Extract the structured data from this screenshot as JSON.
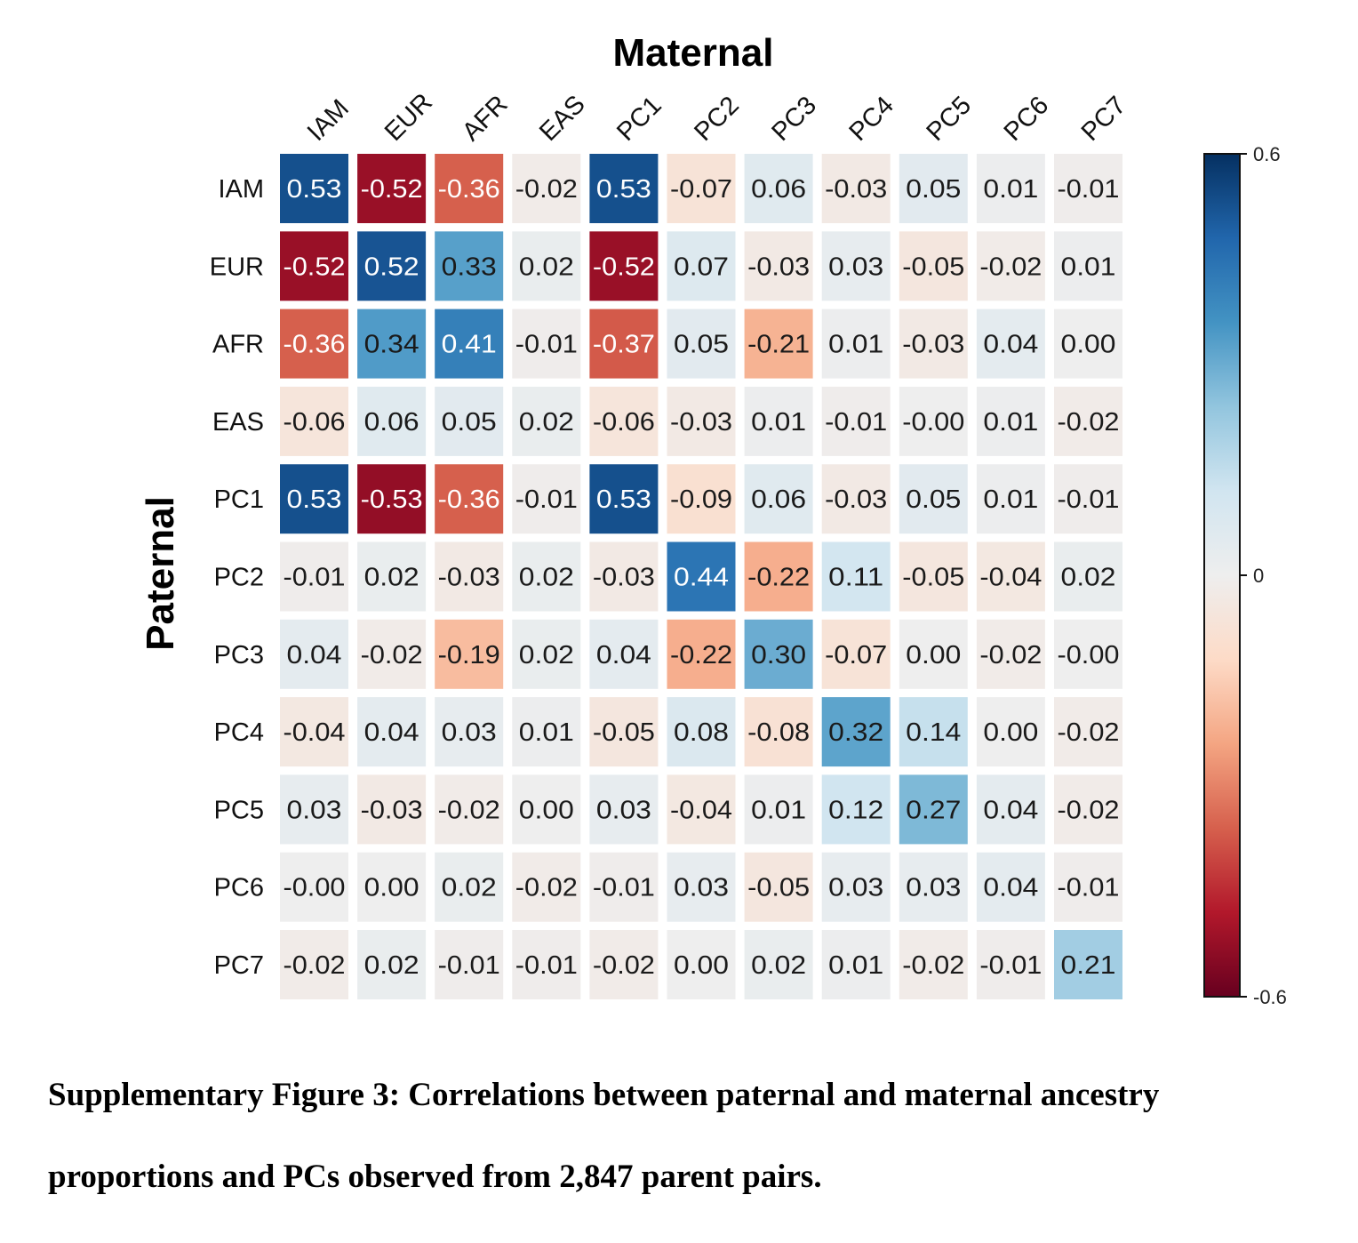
{
  "chart_data": {
    "type": "heatmap",
    "title": "Maternal",
    "xlabel": "Maternal",
    "ylabel": "Paternal",
    "x_categories": [
      "IAM",
      "EUR",
      "AFR",
      "EAS",
      "PC1",
      "PC2",
      "PC3",
      "PC4",
      "PC5",
      "PC6",
      "PC7"
    ],
    "y_categories": [
      "IAM",
      "EUR",
      "AFR",
      "EAS",
      "PC1",
      "PC2",
      "PC3",
      "PC4",
      "PC5",
      "PC6",
      "PC7"
    ],
    "values": [
      [
        0.53,
        -0.52,
        -0.36,
        -0.02,
        0.53,
        -0.07,
        0.06,
        -0.03,
        0.05,
        0.01,
        -0.01
      ],
      [
        -0.52,
        0.52,
        0.33,
        0.02,
        -0.52,
        0.07,
        -0.03,
        0.03,
        -0.05,
        -0.02,
        0.01
      ],
      [
        -0.36,
        0.34,
        0.41,
        -0.01,
        -0.37,
        0.05,
        -0.21,
        0.01,
        -0.03,
        0.04,
        0.0
      ],
      [
        -0.06,
        0.06,
        0.05,
        0.02,
        -0.06,
        -0.03,
        0.01,
        -0.01,
        -0.0,
        0.01,
        -0.02
      ],
      [
        0.53,
        -0.53,
        -0.36,
        -0.01,
        0.53,
        -0.09,
        0.06,
        -0.03,
        0.05,
        0.01,
        -0.01
      ],
      [
        -0.01,
        0.02,
        -0.03,
        0.02,
        -0.03,
        0.44,
        -0.22,
        0.11,
        -0.05,
        -0.04,
        0.02
      ],
      [
        0.04,
        -0.02,
        -0.19,
        0.02,
        0.04,
        -0.22,
        0.3,
        -0.07,
        0.0,
        -0.02,
        -0.0
      ],
      [
        -0.04,
        0.04,
        0.03,
        0.01,
        -0.05,
        0.08,
        -0.08,
        0.32,
        0.14,
        0.0,
        -0.02
      ],
      [
        0.03,
        -0.03,
        -0.02,
        0.0,
        0.03,
        -0.04,
        0.01,
        0.12,
        0.27,
        0.04,
        -0.02
      ],
      [
        -0.0,
        0.0,
        0.02,
        -0.02,
        -0.01,
        0.03,
        -0.05,
        0.03,
        0.03,
        0.04,
        -0.01
      ],
      [
        -0.02,
        0.02,
        -0.01,
        -0.01,
        -0.02,
        0.0,
        0.02,
        0.01,
        -0.02,
        -0.01,
        0.21
      ]
    ],
    "labels_text": [
      [
        "0.53",
        "-0.52",
        "-0.36",
        "-0.02",
        "0.53",
        "-0.07",
        "0.06",
        "-0.03",
        "0.05",
        "0.01",
        "-0.01"
      ],
      [
        "-0.52",
        "0.52",
        "0.33",
        "0.02",
        "-0.52",
        "0.07",
        "-0.03",
        "0.03",
        "-0.05",
        "-0.02",
        "0.01"
      ],
      [
        "-0.36",
        "0.34",
        "0.41",
        "-0.01",
        "-0.37",
        "0.05",
        "-0.21",
        "0.01",
        "-0.03",
        "0.04",
        "0.00"
      ],
      [
        "-0.06",
        "0.06",
        "0.05",
        "0.02",
        "-0.06",
        "-0.03",
        "0.01",
        "-0.01",
        "-0.00",
        "0.01",
        "-0.02"
      ],
      [
        "0.53",
        "-0.53",
        "-0.36",
        "-0.01",
        "0.53",
        "-0.09",
        "0.06",
        "-0.03",
        "0.05",
        "0.01",
        "-0.01"
      ],
      [
        "-0.01",
        "0.02",
        "-0.03",
        "0.02",
        "-0.03",
        "0.44",
        "-0.22",
        "0.11",
        "-0.05",
        "-0.04",
        "0.02"
      ],
      [
        "0.04",
        "-0.02",
        "-0.19",
        "0.02",
        "0.04",
        "-0.22",
        "0.30",
        "-0.07",
        "0.00",
        "-0.02",
        "-0.00"
      ],
      [
        "-0.04",
        "0.04",
        "0.03",
        "0.01",
        "-0.05",
        "0.08",
        "-0.08",
        "0.32",
        "0.14",
        "0.00",
        "-0.02"
      ],
      [
        "0.03",
        "-0.03",
        "-0.02",
        "0.00",
        "0.03",
        "-0.04",
        "0.01",
        "0.12",
        "0.27",
        "0.04",
        "-0.02"
      ],
      [
        "-0.00",
        "0.00",
        "0.02",
        "-0.02",
        "-0.01",
        "0.03",
        "-0.05",
        "0.03",
        "0.03",
        "0.04",
        "-0.01"
      ],
      [
        "-0.02",
        "0.02",
        "-0.01",
        "-0.01",
        "-0.02",
        "0.00",
        "0.02",
        "0.01",
        "-0.02",
        "-0.01",
        "0.21"
      ]
    ],
    "colorbar": {
      "vmin": -0.6,
      "vmax": 0.6,
      "ticks": [
        "0.6",
        "0",
        "-0.6"
      ],
      "colormap": "RdBu"
    },
    "colors": [
      "#67001f",
      "#b2182b",
      "#d6604d",
      "#f4a582",
      "#fddbc7",
      "#eeeeee",
      "#d1e5f0",
      "#92c5de",
      "#4393c3",
      "#2166ac",
      "#053061"
    ]
  },
  "caption": {
    "line1": "Supplementary Figure 3: Correlations between paternal and maternal ancestry",
    "line2": "proportions and PCs observed from 2,847 parent pairs."
  }
}
